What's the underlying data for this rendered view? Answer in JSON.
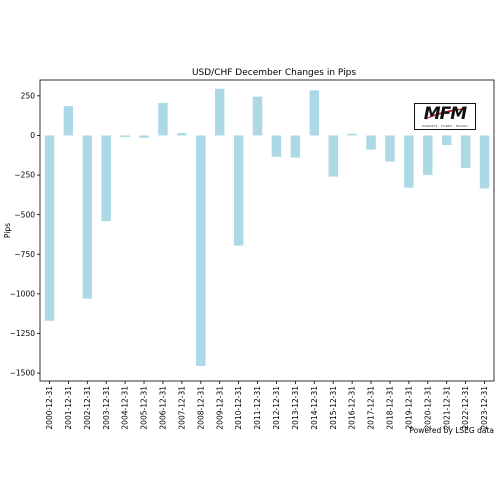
{
  "chart_data": {
    "type": "bar",
    "title": "USD/CHF December Changes in Pips",
    "xlabel": "",
    "ylabel": "Pips",
    "categories": [
      "2000-12-31",
      "2001-12-31",
      "2002-12-31",
      "2003-12-31",
      "2004-12-31",
      "2005-12-31",
      "2006-12-31",
      "2007-12-31",
      "2008-12-31",
      "2009-12-31",
      "2010-12-31",
      "2011-12-31",
      "2012-12-31",
      "2013-12-31",
      "2014-12-31",
      "2015-12-31",
      "2016-12-31",
      "2017-12-31",
      "2018-12-31",
      "2019-12-31",
      "2020-12-31",
      "2021-12-31",
      "2022-12-31",
      "2023-12-31"
    ],
    "values": [
      -1170,
      185,
      -1030,
      -540,
      -10,
      -15,
      205,
      15,
      -1455,
      295,
      -695,
      245,
      -135,
      -140,
      285,
      -260,
      10,
      -90,
      -165,
      -330,
      -250,
      -60,
      -205,
      -335
    ],
    "ylim": [
      -1550,
      350
    ],
    "yticks": [
      250,
      0,
      -250,
      -500,
      -750,
      -1000,
      -1250,
      -1500
    ],
    "ytick_labels": [
      "250",
      "0",
      "−250",
      "−500",
      "−750",
      "−1000",
      "−1250",
      "−1500"
    ],
    "bar_color": "#add8e6",
    "grid": false,
    "legend": "none"
  },
  "credit": "Powered by LSEG data",
  "logo": {
    "text": "MFM",
    "tagline": "MARKETS · FOREX · MACRO"
  }
}
